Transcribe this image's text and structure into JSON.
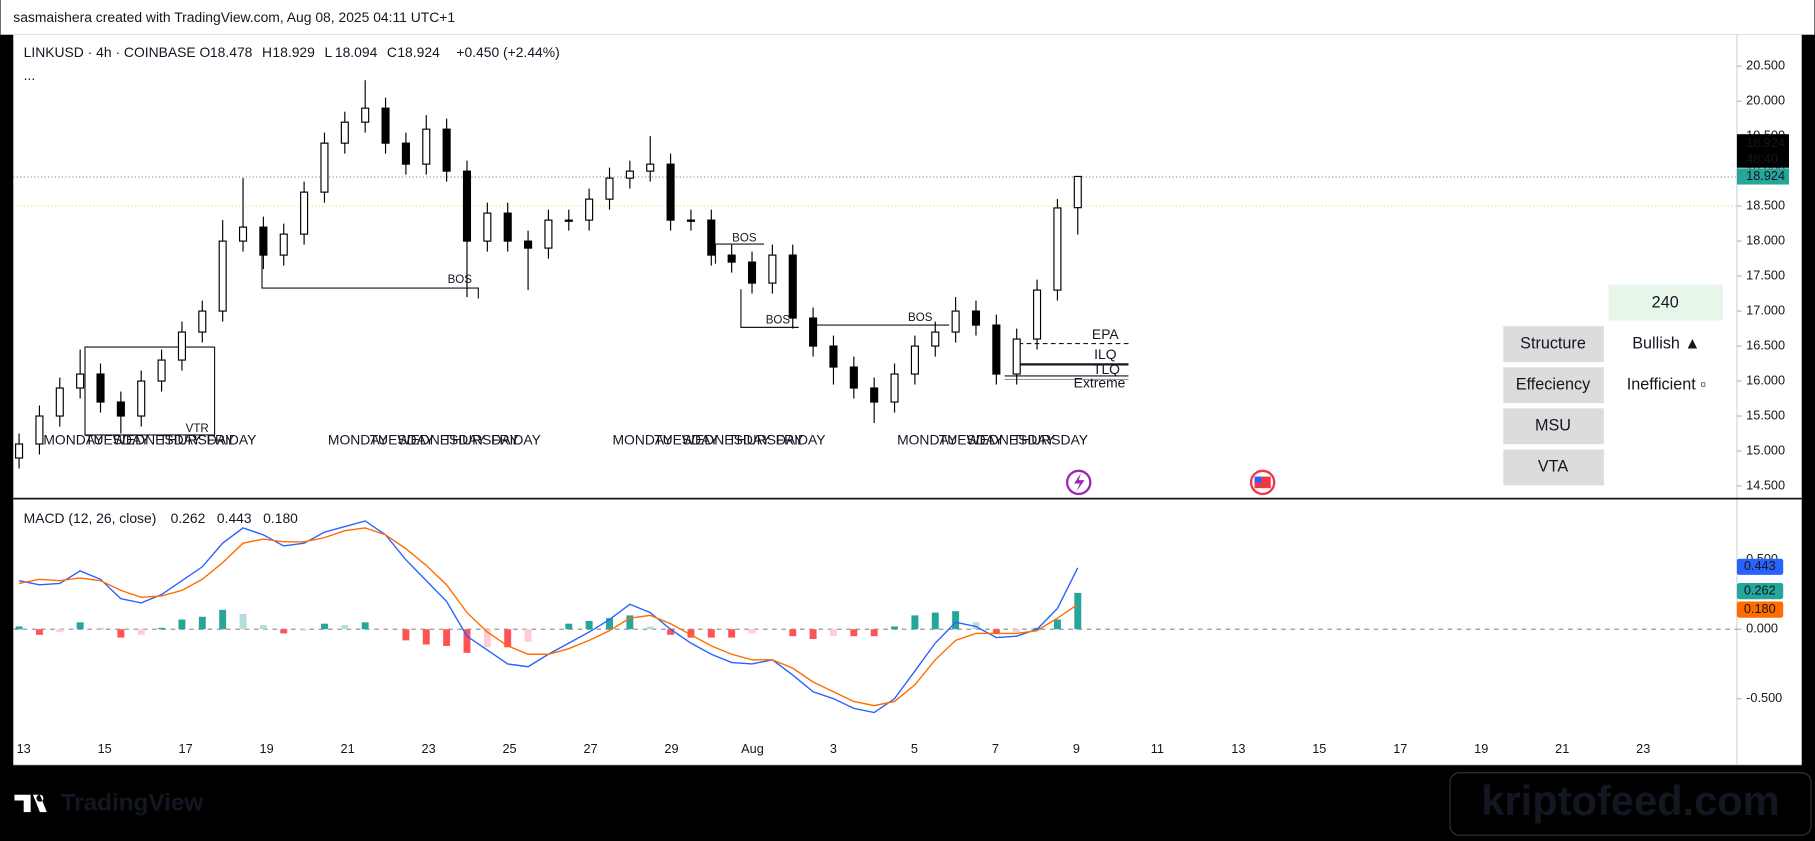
{
  "top_bar": "sasmaishera created with TradingView.com, Aug 08, 2025 04:11 UTC+1",
  "chart_data": [
    {
      "type": "candlestick",
      "symbol": "LINKUSD · 4h · COINBASE",
      "ohlc_labels": [
        "O",
        "H",
        "L",
        "C"
      ],
      "change": "+0.450 (+2.44%)",
      "more": "...",
      "countdown": "48:40",
      "up_color": "#ffffff",
      "down_color": "#000000",
      "wick_color": "#000000",
      "price_label_color": "#000000",
      "last_price_color": "#26a69a",
      "open": [
        14.9,
        15.1,
        15.5,
        15.9,
        16.1,
        15.7,
        15.5,
        16.0,
        16.3,
        16.7,
        17.0,
        18.0,
        18.2,
        17.8,
        18.1,
        18.7,
        19.4,
        19.7,
        19.9,
        19.4,
        19.1,
        19.6,
        19.0,
        18.0,
        18.4,
        18.0,
        17.9,
        18.3,
        18.3,
        18.6,
        18.9,
        19.0,
        19.1,
        18.3,
        18.3,
        17.8,
        17.7,
        17.4,
        17.8,
        16.9,
        16.5,
        16.2,
        15.9,
        15.7,
        16.1,
        16.5,
        16.7,
        17.0,
        16.8,
        16.1,
        16.6,
        17.3,
        18.478
      ],
      "high": [
        15.25,
        15.65,
        16.05,
        16.45,
        16.25,
        15.85,
        16.15,
        16.45,
        16.85,
        17.15,
        18.3,
        18.9,
        18.35,
        18.25,
        18.85,
        19.55,
        19.85,
        20.3,
        20.05,
        19.55,
        19.8,
        19.75,
        19.15,
        18.55,
        18.55,
        18.15,
        18.45,
        18.45,
        18.75,
        19.05,
        19.15,
        19.5,
        19.25,
        18.45,
        18.45,
        17.95,
        17.85,
        17.95,
        17.95,
        17.05,
        16.65,
        16.35,
        16.05,
        16.25,
        16.65,
        16.85,
        17.2,
        17.15,
        16.95,
        16.75,
        17.45,
        18.6,
        18.929
      ],
      "low": [
        14.75,
        14.95,
        15.35,
        15.75,
        15.55,
        15.25,
        15.35,
        15.85,
        16.15,
        16.55,
        16.85,
        17.85,
        17.6,
        17.65,
        17.95,
        18.55,
        19.25,
        19.55,
        19.25,
        18.95,
        18.95,
        18.85,
        17.2,
        17.85,
        17.85,
        17.3,
        17.75,
        18.15,
        18.15,
        18.45,
        18.75,
        18.85,
        18.15,
        18.15,
        17.65,
        17.55,
        17.25,
        17.25,
        16.75,
        16.35,
        15.95,
        15.75,
        15.4,
        15.55,
        15.95,
        16.35,
        16.55,
        16.65,
        15.95,
        15.95,
        16.45,
        17.15,
        18.094
      ],
      "close": [
        15.1,
        15.5,
        15.9,
        16.1,
        15.7,
        15.5,
        16.0,
        16.3,
        16.7,
        17.0,
        18.0,
        18.2,
        17.8,
        18.1,
        18.7,
        19.4,
        19.7,
        19.9,
        19.4,
        19.1,
        19.6,
        19.0,
        18.0,
        18.4,
        18.0,
        17.9,
        18.3,
        18.3,
        18.6,
        18.9,
        19.0,
        19.1,
        18.3,
        18.3,
        17.8,
        17.7,
        17.4,
        17.8,
        16.9,
        16.5,
        16.2,
        15.9,
        15.7,
        16.1,
        16.5,
        16.7,
        17.0,
        16.8,
        16.1,
        16.6,
        17.3,
        18.474,
        18.924
      ],
      "ylim": [
        14.32,
        20.95
      ],
      "yticks": [
        {
          "value": 14.5,
          "label": "14.500"
        },
        {
          "value": 15,
          "label": "15.000"
        },
        {
          "value": 15.5,
          "label": "15.500"
        },
        {
          "value": 16,
          "label": "16.000"
        },
        {
          "value": 16.5,
          "label": "16.500"
        },
        {
          "value": 17,
          "label": "17.000"
        },
        {
          "value": 17.5,
          "label": "17.500"
        },
        {
          "value": 18,
          "label": "18.000"
        },
        {
          "value": 18.5,
          "label": "18.500"
        },
        {
          "value": 19,
          "label": "19.000"
        },
        {
          "value": 19.5,
          "label": "19.500"
        },
        {
          "value": 20,
          "label": "20.000"
        },
        {
          "value": 20.5,
          "label": "20.500"
        }
      ],
      "x_axis_labels": [
        "13",
        "15",
        "17",
        "19",
        "21",
        "23",
        "25",
        "27",
        "29",
        "Aug",
        "3",
        "5",
        "7",
        "9",
        "11",
        "13",
        "15",
        "17",
        "19",
        "21",
        "23"
      ],
      "annotations": [
        "BOS",
        "BOS",
        "BOS",
        "BOS",
        "VTR",
        "EPA",
        "ILQ",
        "TLQ",
        "Extreme"
      ],
      "weekday_labels": [
        "MONDAY",
        "TUESDAY",
        "WEDNESDAY",
        "THURSDAY",
        "FRIDAY"
      ]
    },
    {
      "type": "macd",
      "title": "MACD (12, 26, close)",
      "legend_values": [
        "0.262",
        "0.443",
        "0.180"
      ],
      "legend_colors": [
        "#26a69a",
        "#2962ff",
        "#ff6d00"
      ],
      "series": [
        {
          "name": "MACD",
          "color": "#2962ff",
          "values": [
            0.35,
            0.32,
            0.33,
            0.42,
            0.36,
            0.22,
            0.19,
            0.25,
            0.35,
            0.45,
            0.62,
            0.73,
            0.68,
            0.6,
            0.62,
            0.7,
            0.74,
            0.78,
            0.68,
            0.5,
            0.35,
            0.2,
            -0.05,
            -0.15,
            -0.25,
            -0.27,
            -0.18,
            -0.1,
            -0.02,
            0.07,
            0.18,
            0.12,
            0.0,
            -0.1,
            -0.18,
            -0.24,
            -0.25,
            -0.22,
            -0.33,
            -0.45,
            -0.5,
            -0.57,
            -0.6,
            -0.5,
            -0.3,
            -0.1,
            0.05,
            0.02,
            -0.06,
            -0.05,
            0.0,
            0.15,
            0.443
          ]
        },
        {
          "name": "Signal",
          "color": "#ff6d00",
          "values": [
            0.33,
            0.36,
            0.35,
            0.37,
            0.35,
            0.28,
            0.23,
            0.24,
            0.28,
            0.36,
            0.48,
            0.62,
            0.65,
            0.63,
            0.63,
            0.66,
            0.71,
            0.73,
            0.68,
            0.58,
            0.46,
            0.32,
            0.12,
            -0.02,
            -0.12,
            -0.18,
            -0.18,
            -0.14,
            -0.08,
            -0.01,
            0.08,
            0.1,
            0.04,
            -0.04,
            -0.12,
            -0.18,
            -0.22,
            -0.22,
            -0.28,
            -0.38,
            -0.45,
            -0.52,
            -0.55,
            -0.52,
            -0.4,
            -0.22,
            -0.08,
            -0.03,
            -0.03,
            -0.03,
            -0.01,
            0.08,
            0.18
          ]
        }
      ],
      "histogram": [
        0.02,
        -0.04,
        -0.02,
        0.05,
        0.01,
        -0.06,
        -0.04,
        0.01,
        0.07,
        0.09,
        0.14,
        0.11,
        0.03,
        -0.03,
        -0.01,
        0.04,
        0.03,
        0.05,
        0.0,
        -0.08,
        -0.11,
        -0.12,
        -0.17,
        -0.13,
        -0.13,
        -0.09,
        0.0,
        0.04,
        0.06,
        0.08,
        0.1,
        0.02,
        -0.04,
        -0.06,
        -0.06,
        -0.06,
        -0.03,
        0.0,
        -0.05,
        -0.07,
        -0.05,
        -0.05,
        -0.05,
        0.02,
        0.1,
        0.12,
        0.13,
        0.05,
        -0.03,
        -0.02,
        0.01,
        0.07,
        0.262
      ],
      "histogram_colors": {
        "up_strong": "#26a69a",
        "up_weak": "#b2dfdb",
        "down_strong": "#ff5252",
        "down_weak": "#ffcdd2"
      },
      "ylim": [
        -0.967,
        0.933
      ],
      "yticks": [
        {
          "value": -0.5,
          "label": "-0.500"
        },
        {
          "value": 0,
          "label": "0.000"
        },
        {
          "value": 0.5,
          "label": "0.500"
        }
      ]
    }
  ],
  "panel": {
    "timeframe": "240",
    "rows": [
      [
        "Structure",
        "Bullish ▲"
      ],
      [
        "Effeciency",
        "Inefficient ▫"
      ],
      [
        "MSU"
      ],
      [
        "VTA"
      ]
    ]
  },
  "footer": {
    "logo": "TradingView",
    "watermark": "kriptofeed.com"
  }
}
